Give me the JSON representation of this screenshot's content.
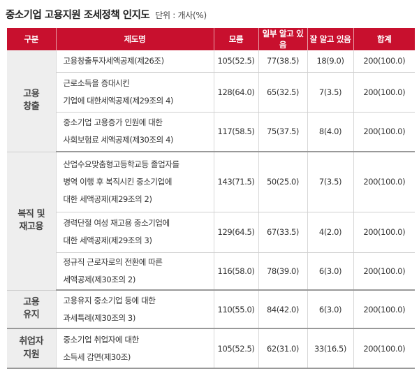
{
  "title": "중소기업 고용지원 조세정책 인지도",
  "unit": "단위 :  개사(%)",
  "columns": [
    "구분",
    "제도명",
    "모름",
    "일부 알고 있음",
    "잘 알고 있음",
    "합계"
  ],
  "groups": [
    {
      "label": "고용\n창출",
      "rows": [
        {
          "name": "고용창출투자세액공제(제26조)",
          "unknown": "105(52.5)",
          "partial": "77(38.5)",
          "well": "18(9.0)",
          "total": "200(100.0)"
        },
        {
          "name": "근로소득을 증대시킨\n기업에 대한세액공제(제29조의 4)",
          "unknown": "128(64.0)",
          "partial": "65(32.5)",
          "well": "7(3.5)",
          "total": "200(100.0)"
        },
        {
          "name": "중소기업 고용증가 인원에 대한\n사회보험료 세액공제(제30조의 4)",
          "unknown": "117(58.5)",
          "partial": "75(37.5)",
          "well": "8(4.0)",
          "total": "200(100.0)"
        }
      ]
    },
    {
      "label": "복직 및\n재고용",
      "rows": [
        {
          "name": "산업수요맞춤형고등학교등 졸업자를\n병역 이행 후 복직시킨 중소기업에\n대한 세액공제(제29조의 2)",
          "unknown": "143(71.5)",
          "partial": "50(25.0)",
          "well": "7(3.5)",
          "total": "200(100.0)"
        },
        {
          "name": "경력단절 여성 재고용 중소기업에\n대한 세액공제(제29조의 3)",
          "unknown": "129(64.5)",
          "partial": "67(33.5)",
          "well": "4(2.0)",
          "total": "200(100.0)"
        },
        {
          "name": "정규직 근로자로의 전환에 따른\n세액공제(제30조의 2)",
          "unknown": "116(58.0)",
          "partial": "78(39.0)",
          "well": "6(3.0)",
          "total": "200(100.0)"
        }
      ]
    },
    {
      "label": "고용\n유지",
      "rows": [
        {
          "name": "고용유지 중소기업 등에 대한\n과세특례(제30조의 3)",
          "unknown": "110(55.0)",
          "partial": "84(42.0)",
          "well": "6(3.0)",
          "total": "200(100.0)"
        }
      ]
    },
    {
      "label": "취업자\n지원",
      "rows": [
        {
          "name": "중소기업 취업자에 대한\n소득세 감면(제30조)",
          "unknown": "105(52.5)",
          "partial": "62(31.0)",
          "well": "33(16.5)",
          "total": "200(100.0)"
        }
      ]
    }
  ]
}
